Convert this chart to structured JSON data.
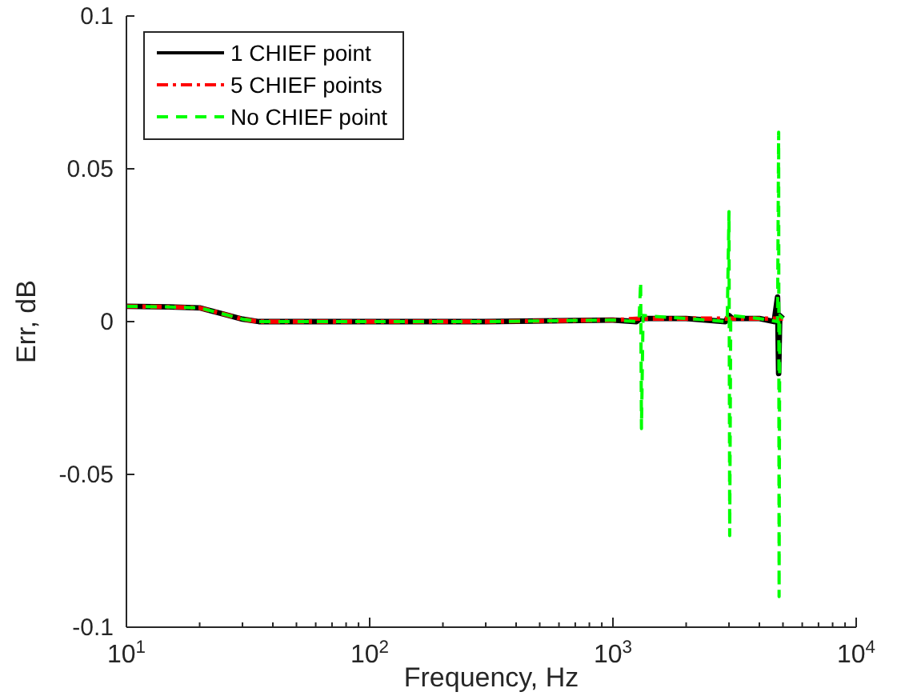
{
  "chart_data": {
    "type": "line",
    "xlabel": "Frequency, Hz",
    "ylabel": "Err, dB",
    "log": "x",
    "xlim": [
      10,
      10000
    ],
    "xticks": [
      {
        "value": 10,
        "label": "10$^{1}$"
      },
      {
        "value": 100,
        "label": "10$^{2}$"
      },
      {
        "value": 1000,
        "label": "10$^{3}$"
      },
      {
        "value": 10000,
        "label": "10$^{4}$"
      }
    ],
    "ylim": [
      -0.1,
      0.1
    ],
    "yticks": [
      -0.1,
      -0.05,
      0,
      0.05,
      0.1
    ],
    "grid": false,
    "legend": "top left",
    "series": [
      {
        "name": "1 CHIEF point",
        "color": "#000000",
        "line_style": "solid",
        "x": [
          10,
          15,
          20,
          25,
          30,
          35,
          50,
          100,
          300,
          1000,
          1250,
          1300,
          1350,
          2000,
          2900,
          3000,
          3100,
          4000,
          4600,
          4750,
          4800,
          4850,
          5000
        ],
        "values": [
          0.005,
          0.0048,
          0.0045,
          0.0025,
          0.0008,
          0,
          0,
          0,
          0,
          0.0005,
          0,
          0.001,
          0.001,
          0.001,
          0,
          0.002,
          0.001,
          0.001,
          0,
          0.008,
          -0.017,
          0.002,
          0.001
        ]
      },
      {
        "name": "5 CHIEF points",
        "color": "#ff0000",
        "line_style": "dashdot",
        "x": [
          10,
          15,
          20,
          25,
          30,
          35,
          50,
          100,
          300,
          1000,
          1300,
          2000,
          3000,
          4000,
          4800,
          5000
        ],
        "values": [
          0.005,
          0.0048,
          0.0045,
          0.0025,
          0.0008,
          0,
          0,
          0,
          0,
          0.0005,
          0.001,
          0.001,
          0.001,
          0.001,
          0.001,
          0.001
        ]
      },
      {
        "name": "No CHIEF point",
        "color": "#00ff00",
        "line_style": "dashed",
        "x": [
          10,
          15,
          20,
          25,
          30,
          35,
          50,
          100,
          300,
          1000,
          1280,
          1300,
          1310,
          1330,
          2000,
          2950,
          3000,
          3020,
          3050,
          4000,
          4750,
          4800,
          4820,
          4850,
          5000
        ],
        "values": [
          0.005,
          0.0048,
          0.0045,
          0.0025,
          0.0008,
          0,
          0,
          0,
          0,
          0.0005,
          0,
          0.013,
          -0.035,
          0.002,
          0.001,
          0,
          0.036,
          -0.07,
          0.002,
          0.001,
          0,
          0.062,
          -0.09,
          0.002,
          0.001
        ]
      }
    ]
  }
}
